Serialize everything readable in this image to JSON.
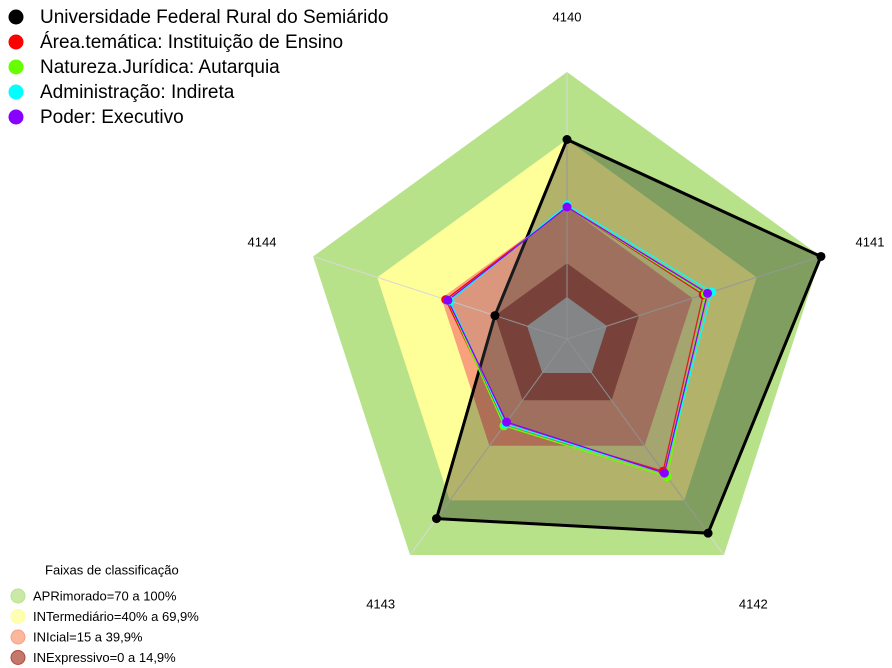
{
  "chart_data": {
    "type": "radar",
    "categories": [
      "4140",
      "4141",
      "4142",
      "4143",
      "4144"
    ],
    "rlim": [
      0,
      100
    ],
    "series": [
      {
        "name": "Universidade Federal Rural do Semiárido",
        "color": "#000000",
        "values": [
          70,
          100,
          88,
          80,
          15
        ]
      },
      {
        "name": "Área.temática: Instituição de Ensino",
        "color": "#ff0000",
        "values": [
          40,
          45,
          54,
          28,
          38
        ]
      },
      {
        "name": "Natureza.Jurídica: Autarquia",
        "color": "#66ff00",
        "values": [
          40,
          46,
          57,
          29,
          37
        ]
      },
      {
        "name": "Administração: Indireta",
        "color": "#00ffff",
        "values": [
          41,
          49,
          55,
          28,
          36
        ]
      },
      {
        "name": "Poder: Executivo",
        "color": "#8800ff",
        "values": [
          40,
          47,
          55,
          27,
          37
        ]
      }
    ],
    "band_legend_title": "Faixas de classificação",
    "bands": [
      {
        "label": "APRimorado=70 a 100%",
        "color": "#b8e28a",
        "range": [
          70,
          100
        ]
      },
      {
        "label": "INTermediário=40% a 69,9%",
        "color": "#ffff99",
        "range": [
          40,
          70
        ]
      },
      {
        "label": "INIcial=15 a 39,9%",
        "color": "#f9a07c",
        "range": [
          15,
          40
        ]
      },
      {
        "label": "INExpressivo=0 a 14,9%",
        "color": "#b04a3a",
        "range": [
          0,
          15
        ]
      }
    ]
  }
}
